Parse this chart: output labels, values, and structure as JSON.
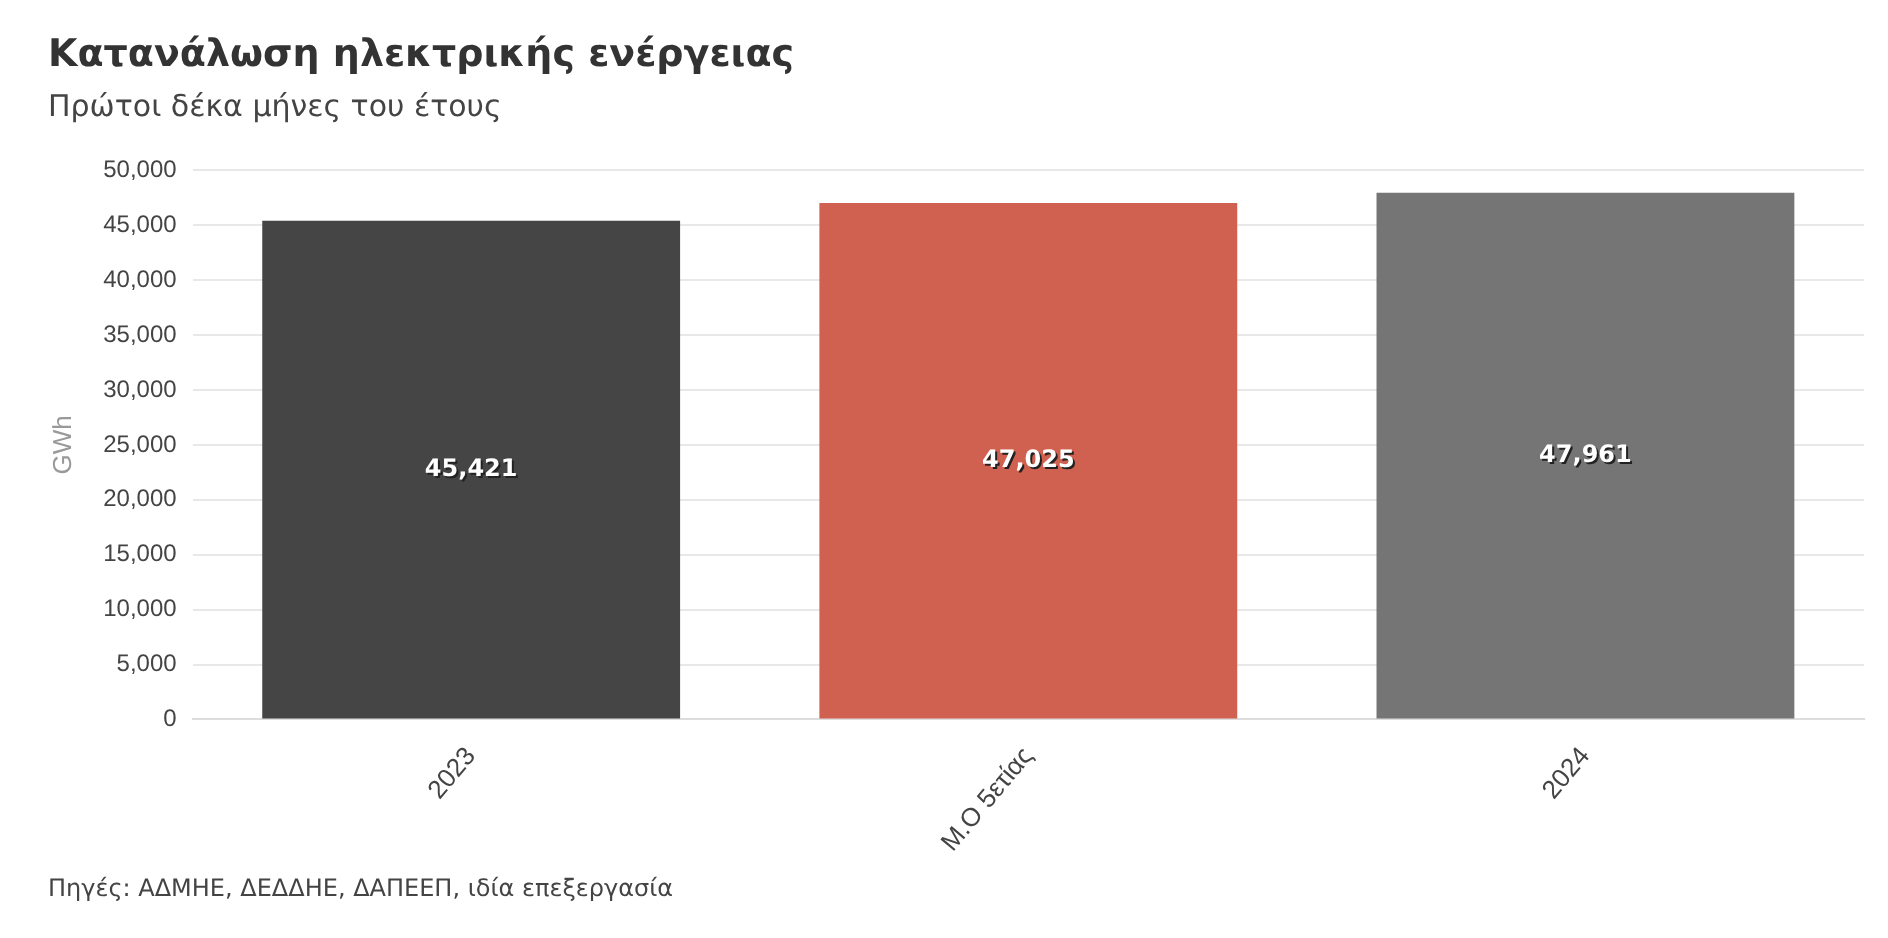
{
  "chart_data": {
    "type": "bar",
    "title": "Κατανάλωση ηλεκτρικής ενέργειας",
    "subtitle": "Πρώτοι δέκα μήνες του έτους",
    "categories": [
      "2023",
      "Μ.Ο 5ετίας",
      "2024"
    ],
    "values": [
      45421,
      47025,
      47961
    ],
    "colors": [
      "#454545",
      "#d06150",
      "#757575"
    ],
    "ylabel": "GWh",
    "value_labels": [
      "45,421",
      "47,025",
      "47,961"
    ],
    "ylim": [
      0,
      50000
    ],
    "yticks": [
      0,
      {
        "value": 5000,
        "label": "5,000"
      },
      {
        "value": 10000,
        "label": "10,000"
      },
      {
        "value": 15000,
        "label": "15,000"
      },
      {
        "value": 20000,
        "label": "20,000"
      },
      {
        "value": 25000,
        "label": "25,000"
      },
      {
        "value": 30000,
        "label": "30,000"
      },
      {
        "value": 35000,
        "label": "35,000"
      },
      {
        "value": 40000,
        "label": "40,000"
      },
      {
        "value": 45000,
        "label": "45,000"
      },
      {
        "value": 50000,
        "label": "50,000"
      }
    ],
    "grid": "y",
    "legend": false,
    "annotations": [
      "Πηγές: ΑΔΜΗΕ, ΔΕΔΔΗΕ, ΔΑΠΕΕΠ, ιδία επεξεργασία"
    ]
  }
}
